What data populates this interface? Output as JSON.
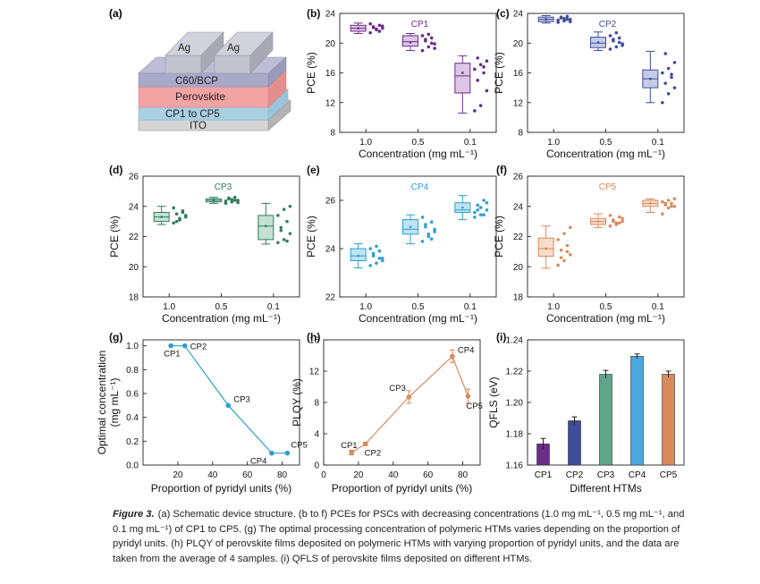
{
  "panel_a": {
    "label": "(a)",
    "layers": [
      "ITO",
      "CP1 to CP5",
      "Perovskite",
      "C60/BCP",
      "Ag"
    ],
    "colors": {
      "ito": "#c9c9c9",
      "htm": "#a9cfe3",
      "perovskite": "#f2a3a3",
      "c60": "#a9a9c9",
      "ag": "#c2c2cd"
    }
  },
  "chart_data": [
    {
      "id": "b",
      "panel_label": "(b)",
      "type": "box",
      "title": "CP1",
      "title_color": "#6b2c86",
      "color": "#6b2c86",
      "fill": "#dcc6e6",
      "categories": [
        "1.0",
        "0.5",
        "0.1"
      ],
      "xlabel": "Concentration (mg mL⁻¹)",
      "ylabel": "PCE (%)",
      "ylim": [
        8,
        24
      ],
      "yticks": [
        "8",
        "12",
        "16",
        "20",
        "24"
      ],
      "boxes": [
        {
          "min": 21.3,
          "q1": 21.6,
          "median": 22.0,
          "mean": 22.0,
          "q3": 22.4,
          "max": 22.7,
          "points": [
            21.4,
            21.8,
            22.0,
            22.2,
            22.4,
            22.6,
            21.9,
            22.3,
            22.1,
            21.6
          ]
        },
        {
          "min": 19.0,
          "q1": 19.6,
          "median": 20.2,
          "mean": 20.1,
          "q3": 21.0,
          "max": 21.3,
          "points": [
            19.0,
            19.5,
            19.9,
            20.3,
            20.7,
            21.0,
            21.2,
            19.3,
            20.5,
            20.0
          ]
        },
        {
          "min": 10.6,
          "q1": 13.3,
          "median": 15.6,
          "mean": 16.0,
          "q3": 17.3,
          "max": 18.3,
          "points": [
            10.9,
            11.6,
            13.6,
            15.0,
            16.0,
            16.5,
            17.1,
            17.6,
            18.0,
            16.8
          ]
        }
      ]
    },
    {
      "id": "c",
      "panel_label": "(c)",
      "type": "box",
      "title": "CP2",
      "title_color": "#3f4c9a",
      "color": "#3f4c9a",
      "fill": "#c6cbe6",
      "categories": [
        "1.0",
        "0.5",
        "0.1"
      ],
      "xlabel": "Concentration (mg mL⁻¹)",
      "ylabel": "PCE (%)",
      "ylim": [
        8,
        24
      ],
      "yticks": [
        "8",
        "12",
        "16",
        "20",
        "24"
      ],
      "boxes": [
        {
          "min": 22.7,
          "q1": 22.9,
          "median": 23.2,
          "mean": 23.2,
          "q3": 23.5,
          "max": 23.7,
          "points": [
            22.8,
            23.0,
            23.2,
            23.4,
            23.6,
            23.1,
            23.3,
            22.9,
            23.5,
            23.2
          ]
        },
        {
          "min": 19.0,
          "q1": 19.4,
          "median": 20.0,
          "mean": 20.1,
          "q3": 20.8,
          "max": 21.5,
          "points": [
            19.2,
            19.5,
            19.9,
            20.3,
            20.7,
            21.0,
            21.4,
            19.7,
            20.5,
            20.1
          ]
        },
        {
          "min": 12.0,
          "q1": 14.0,
          "median": 15.2,
          "mean": 15.2,
          "q3": 16.4,
          "max": 18.9,
          "points": [
            12.0,
            13.2,
            14.0,
            14.6,
            15.4,
            16.0,
            16.6,
            17.4,
            18.6,
            15.8
          ]
        }
      ]
    },
    {
      "id": "d",
      "panel_label": "(d)",
      "type": "box",
      "title": "CP3",
      "title_color": "#2f7d5a",
      "color": "#2f7d5a",
      "fill": "#c4e1d3",
      "categories": [
        "1.0",
        "0.5",
        "0.1"
      ],
      "xlabel": "Concentration (mg mL⁻¹)",
      "ylabel": "PCE (%)",
      "ylim": [
        18,
        26
      ],
      "yticks": [
        "18",
        "20",
        "22",
        "24",
        "26"
      ],
      "boxes": [
        {
          "min": 22.8,
          "q1": 23.0,
          "median": 23.3,
          "mean": 23.3,
          "q3": 23.6,
          "max": 24.0,
          "points": [
            22.9,
            23.1,
            23.3,
            23.5,
            23.7,
            23.9,
            23.2,
            23.4,
            23.0,
            23.6
          ]
        },
        {
          "min": 24.2,
          "q1": 24.3,
          "median": 24.4,
          "mean": 24.4,
          "q3": 24.5,
          "max": 24.6,
          "points": [
            24.2,
            24.3,
            24.4,
            24.5,
            24.6,
            24.35,
            24.45,
            24.25,
            24.55,
            24.4
          ]
        },
        {
          "min": 21.5,
          "q1": 21.8,
          "median": 22.7,
          "mean": 22.7,
          "q3": 23.4,
          "max": 24.2,
          "points": [
            21.6,
            21.8,
            22.2,
            22.6,
            23.0,
            23.4,
            23.8,
            24.0,
            22.4,
            21.7
          ]
        }
      ]
    },
    {
      "id": "e",
      "panel_label": "(e)",
      "type": "box",
      "title": "CP4",
      "title_color": "#2f9fcf",
      "color": "#2f9fcf",
      "fill": "#bfe3f3",
      "categories": [
        "1.0",
        "0.5",
        "0.1"
      ],
      "xlabel": "Concentration (mg mL⁻¹)",
      "ylabel": "PCE (%)",
      "ylim": [
        22,
        27
      ],
      "yticks": [
        "22",
        "24",
        "26"
      ],
      "boxes": [
        {
          "min": 23.2,
          "q1": 23.5,
          "median": 23.7,
          "mean": 23.7,
          "q3": 24.0,
          "max": 24.2,
          "points": [
            23.3,
            23.4,
            23.6,
            23.7,
            23.9,
            24.0,
            24.1,
            23.5,
            23.8,
            23.6
          ]
        },
        {
          "min": 24.2,
          "q1": 24.6,
          "median": 24.8,
          "mean": 24.9,
          "q3": 25.2,
          "max": 25.4,
          "points": [
            24.3,
            24.5,
            24.7,
            24.9,
            25.1,
            25.3,
            24.6,
            24.8,
            25.0,
            24.4
          ]
        },
        {
          "min": 25.2,
          "q1": 25.5,
          "median": 25.6,
          "mean": 25.7,
          "q3": 25.9,
          "max": 26.2,
          "points": [
            25.3,
            25.4,
            25.6,
            25.8,
            26.0,
            25.5,
            25.7,
            25.9,
            25.6,
            25.4
          ]
        }
      ]
    },
    {
      "id": "f",
      "panel_label": "(f)",
      "type": "box",
      "title": "CP5",
      "title_color": "#d98a5c",
      "color": "#d98a5c",
      "fill": "#f6dccb",
      "categories": [
        "1.0",
        "0.5",
        "0.1"
      ],
      "xlabel": "Concentration (mg mL⁻¹)",
      "ylabel": "PCE (%)",
      "ylim": [
        18,
        26
      ],
      "yticks": [
        "18",
        "20",
        "22",
        "24",
        "26"
      ],
      "boxes": [
        {
          "min": 19.9,
          "q1": 20.7,
          "median": 21.2,
          "mean": 21.2,
          "q3": 21.9,
          "max": 22.7,
          "points": [
            20.1,
            20.4,
            20.8,
            21.1,
            21.4,
            21.8,
            22.2,
            22.6,
            20.6,
            21.0
          ]
        },
        {
          "min": 22.6,
          "q1": 22.8,
          "median": 23.0,
          "mean": 23.0,
          "q3": 23.2,
          "max": 23.5,
          "points": [
            22.7,
            22.9,
            23.0,
            23.1,
            23.3,
            23.4,
            22.8,
            23.2,
            23.0,
            22.9
          ]
        },
        {
          "min": 23.6,
          "q1": 24.0,
          "median": 24.2,
          "mean": 24.2,
          "q3": 24.4,
          "max": 24.5,
          "points": [
            23.5,
            23.9,
            24.0,
            24.1,
            24.2,
            24.3,
            24.4,
            24.5,
            24.2,
            24.0
          ]
        }
      ]
    },
    {
      "id": "g",
      "panel_label": "(g)",
      "type": "line",
      "color": "#2f9fcf",
      "xlabel": "Proportion of pyridyl units (%)",
      "ylabel_lines": [
        "Optimal concentration",
        "(mg mL⁻¹)"
      ],
      "xlim": [
        0,
        90
      ],
      "ylim": [
        0,
        1.05
      ],
      "xticks": [
        "20",
        "40",
        "60",
        "80"
      ],
      "yticks": [
        "0.0",
        "0.2",
        "0.4",
        "0.6",
        "0.8",
        "1.0"
      ],
      "x": [
        16,
        24,
        49,
        74,
        83
      ],
      "y": [
        1.0,
        1.0,
        0.5,
        0.1,
        0.1
      ],
      "point_labels": [
        "CP1",
        "CP2",
        "CP3",
        "CP4",
        "CP5"
      ]
    },
    {
      "id": "h",
      "panel_label": "(h)",
      "type": "line",
      "color": "#d98a5c",
      "xlabel": "Proportion of pyridyl units (%)",
      "ylabel": "PLQY (%)",
      "xlim": [
        0,
        90
      ],
      "ylim": [
        0,
        16
      ],
      "xticks": [
        "0",
        "20",
        "40",
        "60",
        "80"
      ],
      "yticks": [
        "0",
        "4",
        "8",
        "12",
        "16"
      ],
      "x": [
        16,
        24,
        49,
        74,
        83
      ],
      "y": [
        1.6,
        2.7,
        8.7,
        13.9,
        8.8
      ],
      "errors": [
        0.3,
        0.2,
        0.8,
        0.8,
        0.9
      ],
      "point_labels": [
        "CP1",
        "CP2",
        "CP3",
        "CP4",
        "CP5"
      ]
    },
    {
      "id": "i",
      "panel_label": "(i)",
      "type": "bar",
      "xlabel": "Different HTMs",
      "ylabel": "QFLS (eV)",
      "categories": [
        "CP1",
        "CP2",
        "CP3",
        "CP4",
        "CP5"
      ],
      "values": [
        1.1735,
        1.1883,
        1.218,
        1.2295,
        1.218
      ],
      "errors": [
        0.0035,
        0.0025,
        0.0025,
        0.0015,
        0.002
      ],
      "colors": [
        "#6b2c86",
        "#3f4c9a",
        "#5fa589",
        "#4aa8dc",
        "#d98a5c"
      ],
      "ylim": [
        1.16,
        1.24
      ],
      "yticks": [
        "1.16",
        "1.18",
        "1.20",
        "1.22",
        "1.24"
      ]
    }
  ],
  "caption": {
    "lead": "Figure 3.",
    "text": "(a) Schematic device structure. (b to f) PCEs for PSCs with decreasing concentrations (1.0 mg mL⁻¹, 0.5 mg mL⁻¹, and 0.1 mg mL⁻¹) of CP1 to CP5. (g) The optimal processing concentration of polymeric HTMs varies depending on the proportion of pyridyl units. (h) PLQY of perovskite films deposited on polymeric HTMs with varying proportion of pyridyl units, and the data are taken from the average of 4 samples. (i) QFLS of perovskite films deposited on different HTMs."
  }
}
